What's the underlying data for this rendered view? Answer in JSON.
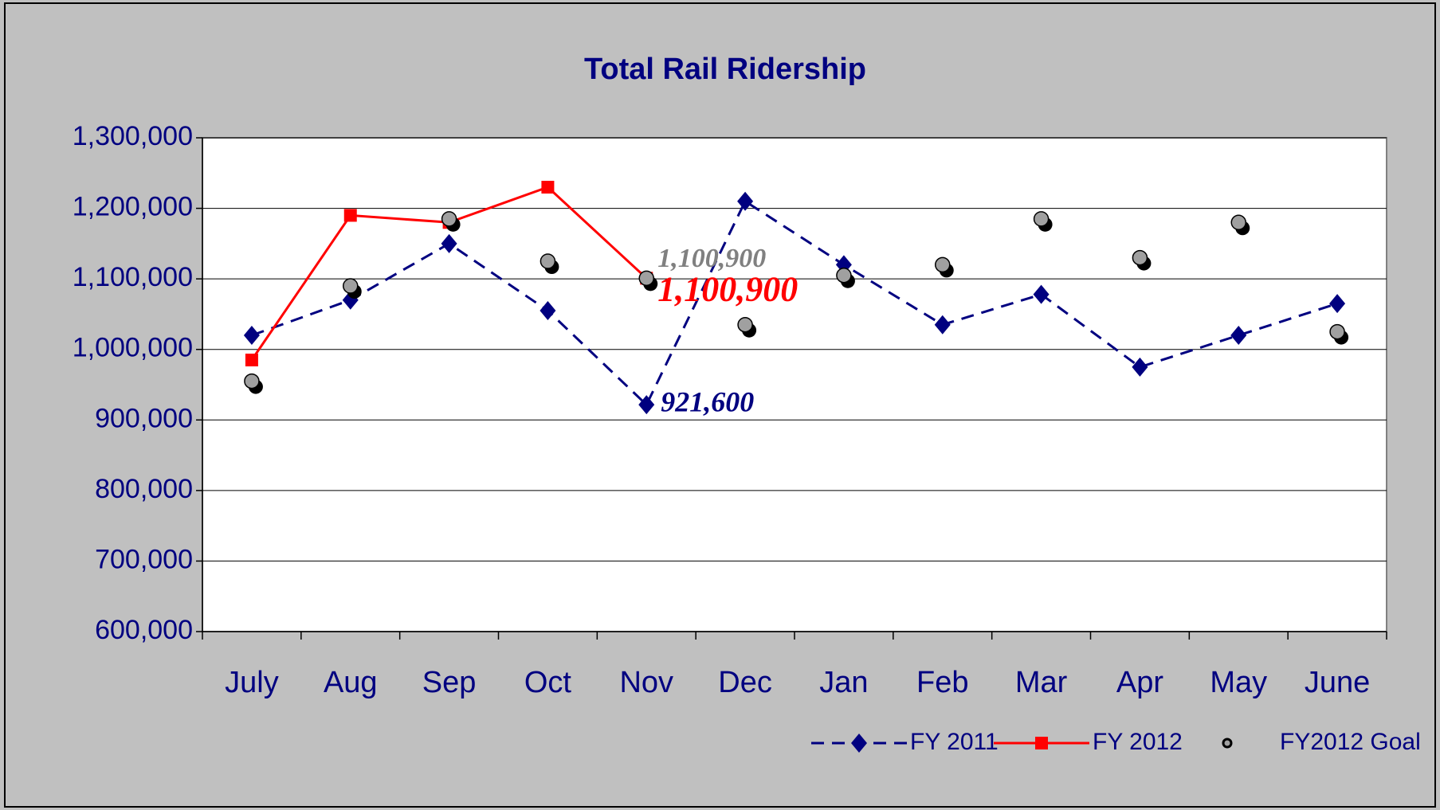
{
  "chart_data": {
    "type": "line",
    "title": "Total Rail Ridership",
    "categories": [
      "July",
      "Aug",
      "Sep",
      "Oct",
      "Nov",
      "Dec",
      "Jan",
      "Feb",
      "Mar",
      "Apr",
      "May",
      "June"
    ],
    "series": [
      {
        "name": "FY 2011",
        "color": "#000080",
        "style": "dashed",
        "marker": "diamond",
        "values": [
          1020000,
          1070000,
          1150000,
          1055000,
          921600,
          1210000,
          1120000,
          1035000,
          1078000,
          975000,
          1020000,
          1065000
        ],
        "value_labels": [
          null,
          null,
          null,
          null,
          "921,600",
          null,
          null,
          null,
          null,
          null,
          null,
          null
        ]
      },
      {
        "name": "FY 2012",
        "color": "#ff0000",
        "style": "solid",
        "marker": "square",
        "values": [
          985000,
          1190000,
          1180000,
          1230000,
          1100900,
          null,
          null,
          null,
          null,
          null,
          null,
          null
        ],
        "value_labels": [
          null,
          null,
          null,
          null,
          "1,100,900",
          null,
          null,
          null,
          null,
          null,
          null,
          null
        ]
      },
      {
        "name": "FY2012 Goal",
        "color": "#a0a0a0",
        "style": "none",
        "marker": "circle",
        "values": [
          955000,
          1090000,
          1185000,
          1125000,
          1100900,
          1035000,
          1105000,
          1120000,
          1185000,
          1130000,
          1180000,
          1025000
        ],
        "value_labels": [
          null,
          null,
          null,
          null,
          "1,100,900",
          null,
          null,
          null,
          null,
          null,
          null,
          null
        ]
      }
    ],
    "ylim": [
      600000,
      1300000
    ],
    "yticks": [
      {
        "value": 600000,
        "label": "600,000"
      },
      {
        "value": 700000,
        "label": "700,000"
      },
      {
        "value": 800000,
        "label": "800,000"
      },
      {
        "value": 900000,
        "label": "900,000"
      },
      {
        "value": 1000000,
        "label": "1,000,000"
      },
      {
        "value": 1100000,
        "label": "1,100,000"
      },
      {
        "value": 1200000,
        "label": "1,200,000"
      },
      {
        "value": 1300000,
        "label": "1,300,000"
      }
    ],
    "grid": true,
    "legend": "bottom-right"
  }
}
